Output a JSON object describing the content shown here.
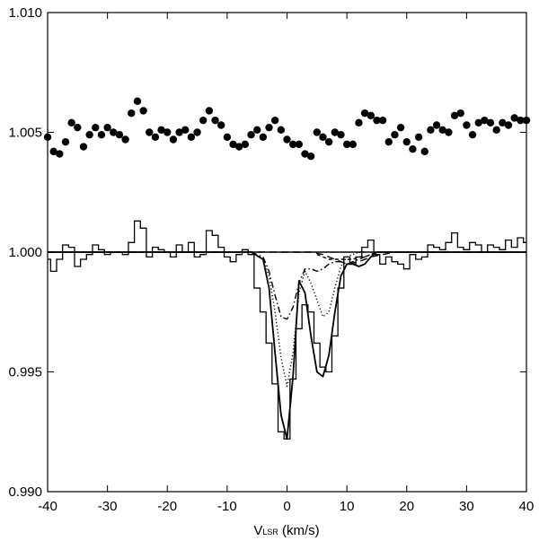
{
  "chart_data": {
    "type": "line",
    "title": "",
    "xlabel_main": "V",
    "xlabel_sub": "LSR",
    "xlabel_unit": " (km/s)",
    "xlim": [
      -40,
      40
    ],
    "ylim": [
      0.99,
      1.01
    ],
    "xticks": [
      -40,
      -30,
      -20,
      -10,
      0,
      10,
      20,
      30,
      40
    ],
    "xtick_labels": [
      "-40",
      "-30",
      "-20",
      "-10",
      "0",
      "10",
      "20",
      "30",
      "40"
    ],
    "yticks": [
      0.99,
      0.995,
      1.0,
      1.005,
      1.01
    ],
    "ytick_labels": [
      "0.990",
      "0.995",
      "1.000",
      "1.005",
      "1.010"
    ],
    "grid": false,
    "legend": "none",
    "series": [
      {
        "style": "histogram",
        "binwidth": 1,
        "x": [
          -40,
          -39,
          -38,
          -37,
          -36,
          -35,
          -34,
          -33,
          -32,
          -31,
          -30,
          -29,
          -28,
          -27,
          -26,
          -25,
          -24,
          -23,
          -22,
          -21,
          -20,
          -19,
          -18,
          -17,
          -16,
          -15,
          -14,
          -13,
          -12,
          -11,
          -10,
          -9,
          -8,
          -7,
          -6,
          -5,
          -4,
          -3,
          -2,
          -1,
          0,
          1,
          2,
          3,
          4,
          5,
          6,
          7,
          8,
          9,
          10,
          11,
          12,
          13,
          14,
          15,
          16,
          17,
          18,
          19,
          20,
          21,
          22,
          23,
          24,
          25,
          26,
          27,
          28,
          29,
          30,
          31,
          32,
          33,
          34,
          35,
          36,
          37,
          38,
          39,
          40
        ],
        "y": [
          0.9997,
          0.9992,
          0.9997,
          1.0003,
          1.0002,
          0.9994,
          0.9997,
          0.9999,
          1.0003,
          1.0001,
          0.9999,
          1.0,
          1.0,
          0.9999,
          1.0004,
          1.0013,
          1.001,
          0.9998,
          1.0002,
          1.0001,
          1.0,
          0.9998,
          1.0003,
          1.0,
          1.0004,
          0.9998,
          0.9999,
          1.0009,
          1.0007,
          1.0002,
          0.9998,
          0.9996,
          0.9999,
          1.0001,
          0.9999,
          0.9985,
          0.9975,
          0.9962,
          0.9945,
          0.9925,
          0.9922,
          0.9947,
          0.9968,
          0.9978,
          0.9975,
          0.9962,
          0.9952,
          0.995,
          0.9965,
          0.9985,
          0.9998,
          0.9995,
          0.9998,
          1.0002,
          1.0005,
          0.9999,
          0.9995,
          0.9998,
          0.9996,
          0.9995,
          0.9993,
          0.9999,
          0.9997,
          0.9998,
          1.0003,
          1.0002,
          1.0001,
          1.0004,
          1.0008,
          1.0002,
          1.0001,
          1.0004,
          1.0003,
          1.0,
          1.0003,
          1.0002,
          1.0001,
          1.0005,
          1.0002,
          1.0006,
          1.0004
        ]
      },
      {
        "style": "solid",
        "x": [
          -40,
          -6,
          -4,
          -3,
          -2,
          -1,
          0,
          1,
          2,
          3,
          4,
          5,
          6,
          7,
          8,
          9,
          10,
          11,
          12,
          13,
          14,
          15,
          16,
          17,
          40
        ],
        "y": [
          1.0,
          1.0,
          0.9997,
          0.9985,
          0.9958,
          0.9932,
          0.9922,
          0.9948,
          0.9988,
          0.9983,
          0.9965,
          0.995,
          0.9948,
          0.9957,
          0.9975,
          0.999,
          0.9995,
          0.9995,
          0.9994,
          0.9995,
          0.9998,
          1.0,
          1.0,
          1.0,
          1.0
        ]
      },
      {
        "style": "dotted",
        "x": [
          -6,
          -4,
          -3,
          -2,
          -1,
          0,
          1,
          2,
          3,
          4,
          5,
          6,
          7,
          8,
          9,
          10,
          11,
          12,
          13
        ],
        "y": [
          1.0,
          0.9997,
          0.999,
          0.9975,
          0.9956,
          0.9944,
          0.9958,
          0.9983,
          0.9992,
          0.9987,
          0.998,
          0.9973,
          0.9975,
          0.9985,
          0.9994,
          0.9998,
          0.9999,
          1.0,
          1.0
        ]
      },
      {
        "style": "dashdot",
        "x": [
          -6,
          -4,
          -3,
          -2,
          -1,
          0,
          1,
          2,
          3,
          4,
          5,
          6,
          7,
          8,
          9,
          10,
          11,
          12,
          13,
          14,
          15,
          16,
          17
        ],
        "y": [
          1.0,
          0.9998,
          0.9992,
          0.9982,
          0.9973,
          0.9972,
          0.9977,
          0.9987,
          0.9993,
          0.9993,
          0.9992,
          0.9993,
          0.9995,
          0.9996,
          0.9996,
          0.9995,
          0.9996,
          0.9997,
          0.9998,
          0.9999,
          1.0,
          1.0,
          1.0
        ]
      },
      {
        "style": "dashed",
        "x": [
          -40,
          0,
          2,
          4,
          6,
          8,
          10,
          12,
          14,
          16,
          18,
          40
        ],
        "y": [
          1.0,
          1.0,
          1.0,
          1.0,
          0.9999,
          0.9997,
          0.9995,
          0.9996,
          0.9998,
          0.9999,
          1.0,
          1.0
        ]
      },
      {
        "style": "shortdash",
        "x": [
          5,
          6,
          7,
          8,
          9,
          10,
          11,
          12,
          13,
          14,
          15,
          16
        ],
        "y": [
          0.9999,
          0.9998,
          0.9997,
          0.9997,
          0.9997,
          0.9997,
          0.9997,
          0.9998,
          0.9998,
          0.9999,
          1.0,
          1.0
        ]
      },
      {
        "style": "markers",
        "x": [
          -40,
          -39,
          -38,
          -37,
          -36,
          -35,
          -34,
          -33,
          -32,
          -31,
          -30,
          -29,
          -28,
          -27,
          -26,
          -25,
          -24,
          -23,
          -22,
          -21,
          -20,
          -19,
          -18,
          -17,
          -16,
          -15,
          -14,
          -13,
          -12,
          -11,
          -10,
          -9,
          -8,
          -7,
          -6,
          -5,
          -4,
          -3,
          -2,
          -1,
          0,
          1,
          2,
          3,
          4,
          5,
          6,
          7,
          8,
          9,
          10,
          11,
          12,
          13,
          14,
          15,
          16,
          17,
          18,
          19,
          20,
          21,
          22,
          23,
          24,
          25,
          26,
          27,
          28,
          29,
          30,
          31,
          32,
          33,
          34,
          35,
          36,
          37,
          38,
          39,
          40
        ],
        "y": [
          1.0048,
          1.0042,
          1.0041,
          1.0046,
          1.0054,
          1.0052,
          1.0044,
          1.0049,
          1.0052,
          1.0049,
          1.0052,
          1.005,
          1.0049,
          1.0047,
          1.0058,
          1.0063,
          1.0059,
          1.005,
          1.0048,
          1.0051,
          1.005,
          1.0047,
          1.005,
          1.0051,
          1.0048,
          1.005,
          1.0055,
          1.0059,
          1.0055,
          1.0053,
          1.0048,
          1.0045,
          1.0044,
          1.0045,
          1.0049,
          1.0051,
          1.0048,
          1.0052,
          1.0055,
          1.0051,
          1.0047,
          1.0045,
          1.0045,
          1.0041,
          1.004,
          1.005,
          1.0048,
          1.0046,
          1.005,
          1.0049,
          1.0045,
          1.0045,
          1.0054,
          1.0058,
          1.0057,
          1.0055,
          1.0055,
          1.0046,
          1.0049,
          1.0052,
          1.0046,
          1.0043,
          1.0048,
          1.0042,
          1.0051,
          1.0053,
          1.0051,
          1.005,
          1.0057,
          1.0058,
          1.0053,
          1.0049,
          1.0054,
          1.0055,
          1.0054,
          1.0051,
          1.0054,
          1.0053,
          1.0056,
          1.0055,
          1.0055
        ]
      }
    ]
  }
}
